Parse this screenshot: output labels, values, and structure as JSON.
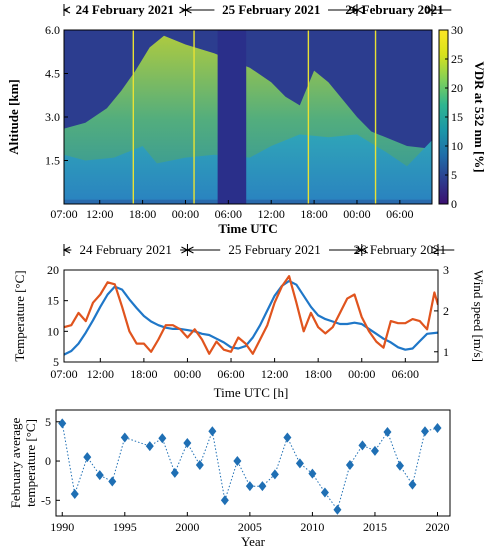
{
  "colors": {
    "temperature": "#1f77c8",
    "wind": "#e0541e",
    "scatter": "#1f6fb4",
    "colormap": [
      "#3b0f70",
      "#2c3d8f",
      "#206da8",
      "#1b96a8",
      "#2fb590",
      "#7fd05a",
      "#d8e21c",
      "#fde725"
    ]
  },
  "chart_data": [
    {
      "type": "heatmap",
      "title": "",
      "date_headers": [
        "24 February 2021",
        "25 February 2021",
        "26 February 2021"
      ],
      "xlabel": "Time UTC",
      "ylabel": "Altitude [km]",
      "x_ticks": [
        "07:00",
        "12:00",
        "18:00",
        "00:00",
        "06:00",
        "12:00",
        "18:00",
        "00:00",
        "06:00"
      ],
      "x_tick_hours": [
        7,
        12,
        18,
        24,
        30,
        36,
        42,
        48,
        54
      ],
      "xlim_hours": [
        7,
        58.5
      ],
      "y_ticks": [
        "1.5",
        "3.0",
        "4.5",
        "6.0"
      ],
      "ylim": [
        0,
        6
      ],
      "colorbar_label": "VDR at 532 nm [%]",
      "colorbar_ticks": [
        "0",
        "5",
        "10",
        "15",
        "20",
        "25",
        "30"
      ],
      "colorbar_range": [
        0,
        30
      ],
      "no_data_interval_hours": [
        28.5,
        32.5
      ],
      "vertical_lines_hours": [
        16.7,
        25.2,
        41.2,
        50.6
      ],
      "upper_layer_top_km": [
        [
          7,
          2.6
        ],
        [
          10,
          2.8
        ],
        [
          13,
          3.3
        ],
        [
          15,
          3.9
        ],
        [
          17,
          4.6
        ],
        [
          19,
          5.4
        ],
        [
          21,
          5.8
        ],
        [
          24,
          5.5
        ],
        [
          28,
          5.2
        ],
        [
          33,
          4.7
        ],
        [
          36,
          4.2
        ],
        [
          38,
          3.7
        ],
        [
          40,
          3.4
        ],
        [
          42,
          4.6
        ],
        [
          44,
          4.2
        ],
        [
          46,
          3.6
        ],
        [
          48,
          3.0
        ],
        [
          50,
          2.5
        ],
        [
          52,
          2.3
        ],
        [
          55,
          2.0
        ],
        [
          58.5,
          1.9
        ]
      ],
      "low_layer_top_km": [
        [
          7,
          1.7
        ],
        [
          10,
          1.5
        ],
        [
          14,
          1.6
        ],
        [
          18,
          2.0
        ],
        [
          20,
          1.4
        ],
        [
          24,
          1.6
        ],
        [
          28,
          1.7
        ],
        [
          33,
          1.6
        ],
        [
          36,
          2.0
        ],
        [
          40,
          2.4
        ],
        [
          44,
          2.3
        ],
        [
          48,
          2.4
        ],
        [
          52,
          1.8
        ],
        [
          55,
          1.3
        ],
        [
          58.5,
          2.2
        ]
      ]
    },
    {
      "type": "line",
      "title": "",
      "date_headers": [
        "24 February 2021",
        "25 February 2021",
        "26 February 2021"
      ],
      "xlabel": "Time UTC [h]",
      "ylabel": "Temperature [°C]",
      "ylabel_right": "Wind speed [m/s]",
      "x_ticks": [
        "07:00",
        "12:00",
        "18:00",
        "00:00",
        "06:00",
        "12:00",
        "18:00",
        "00:00",
        "06:00"
      ],
      "x_tick_hours": [
        7,
        12,
        18,
        24,
        30,
        36,
        42,
        48,
        54
      ],
      "xlim_hours": [
        7,
        58.5
      ],
      "ylim_left": [
        5,
        20
      ],
      "y_ticks_left": [
        "5",
        "10",
        "15",
        "20"
      ],
      "ylim_right": [
        0.75,
        3
      ],
      "y_ticks_right": [
        "1",
        "2",
        "3"
      ],
      "series": [
        {
          "axis": "left",
          "x": [
            7,
            8,
            9,
            10,
            11,
            12,
            13,
            14,
            15,
            16,
            17,
            18,
            19,
            20,
            21,
            22,
            23,
            24,
            25,
            26,
            27,
            28,
            29,
            30,
            31,
            32,
            33,
            34,
            35,
            36,
            37,
            38,
            39,
            40,
            41,
            42,
            43,
            44,
            45,
            46,
            47,
            48,
            49,
            50,
            51,
            52,
            53,
            54,
            55,
            56,
            57,
            58.5
          ],
          "values": [
            6.2,
            6.8,
            8.0,
            9.8,
            11.8,
            14.0,
            16.0,
            17.3,
            16.8,
            15.2,
            13.8,
            12.5,
            11.6,
            11.0,
            10.6,
            10.4,
            10.4,
            10.2,
            10.0,
            9.6,
            9.4,
            8.8,
            8.2,
            7.4,
            7.2,
            7.6,
            9.0,
            11.0,
            13.4,
            15.8,
            17.4,
            18.2,
            17.6,
            15.8,
            14.0,
            12.6,
            12.0,
            11.6,
            11.2,
            11.2,
            11.4,
            11.2,
            10.4,
            9.6,
            8.8,
            8.2,
            7.4,
            7.0,
            7.2,
            8.4,
            9.6,
            9.8
          ]
        },
        {
          "axis": "right",
          "x": [
            7,
            8,
            9,
            10,
            11,
            12,
            13,
            14,
            15,
            16,
            17,
            18,
            19,
            20,
            21,
            22,
            23,
            24,
            25,
            26,
            27,
            28,
            29,
            30,
            31,
            32,
            33,
            34,
            35,
            36,
            37,
            38,
            39,
            40,
            41,
            42,
            43,
            44,
            45,
            46,
            47,
            48,
            49,
            50,
            51,
            52,
            53,
            54,
            55,
            56,
            57,
            58,
            58.5
          ],
          "values": [
            1.6,
            1.65,
            1.95,
            1.75,
            2.2,
            2.4,
            2.7,
            2.65,
            2.1,
            1.5,
            1.2,
            1.2,
            1.0,
            1.3,
            1.65,
            1.65,
            1.55,
            1.35,
            1.55,
            1.3,
            0.95,
            1.25,
            1.05,
            1.0,
            1.35,
            1.2,
            0.95,
            1.3,
            1.65,
            2.2,
            2.6,
            2.85,
            2.2,
            1.5,
            1.95,
            1.6,
            1.45,
            1.6,
            1.95,
            2.3,
            2.4,
            1.85,
            1.5,
            1.25,
            1.1,
            1.75,
            1.7,
            1.7,
            1.8,
            1.75,
            1.55,
            2.45,
            2.15
          ]
        }
      ]
    },
    {
      "type": "scatter",
      "title": "",
      "xlabel": "Year",
      "ylabel": "February average temperature [°C]",
      "ylabel_lines": [
        "February average",
        "temperature [°C]"
      ],
      "xlim": [
        1989.5,
        2021
      ],
      "x_ticks": [
        "1990",
        "1995",
        "2000",
        "2005",
        "2010",
        "2015",
        "2020"
      ],
      "ylim": [
        -7,
        6.5
      ],
      "y_ticks": [
        "-5",
        "0",
        "5"
      ],
      "x": [
        1990,
        1991,
        1992,
        1993,
        1994,
        1995,
        1997,
        1998,
        1999,
        2000,
        2001,
        2002,
        2003,
        2004,
        2005,
        2006,
        2007,
        2008,
        2009,
        2010,
        2011,
        2012,
        2013,
        2014,
        2015,
        2016,
        2017,
        2018,
        2019,
        2020
      ],
      "values": [
        4.8,
        -4.2,
        0.5,
        -1.8,
        -2.6,
        3.0,
        1.9,
        2.9,
        -1.5,
        2.3,
        -0.5,
        3.8,
        -5.0,
        0.0,
        -3.2,
        -3.2,
        -1.7,
        3.0,
        -0.3,
        -1.6,
        -4.0,
        -6.2,
        -0.5,
        2.0,
        1.3,
        3.7,
        -0.6,
        -3.0,
        3.8,
        4.2
      ]
    }
  ]
}
